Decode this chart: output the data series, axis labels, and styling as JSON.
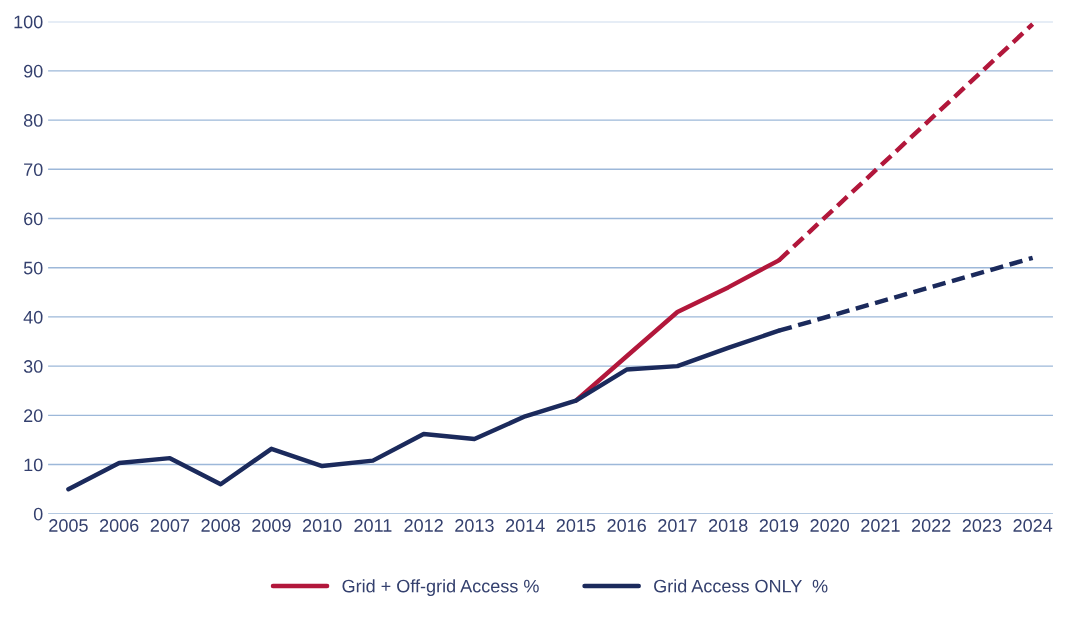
{
  "chart_data": {
    "type": "line",
    "categories": [
      "2005",
      "2006",
      "2007",
      "2008",
      "2009",
      "2010",
      "2011",
      "2012",
      "2013",
      "2014",
      "2015",
      "2016",
      "2017",
      "2018",
      "2019",
      "2020",
      "2021",
      "2022",
      "2023",
      "2024"
    ],
    "series": [
      {
        "name": "Grid + Off-grid Access %",
        "color": "#b2173b",
        "line_style": "solid",
        "values": [
          null,
          null,
          null,
          null,
          null,
          null,
          null,
          null,
          null,
          null,
          23,
          32,
          41,
          46,
          51.5,
          null,
          null,
          null,
          null,
          null
        ]
      },
      {
        "color": "#b2173b",
        "line_style": "dashed",
        "values": [
          null,
          null,
          null,
          null,
          null,
          null,
          null,
          null,
          null,
          null,
          null,
          null,
          null,
          null,
          51.5,
          null,
          null,
          null,
          null,
          99.5
        ]
      },
      {
        "name": "Grid Access ONLY  %",
        "color": "#1b2a5c",
        "line_style": "solid",
        "values": [
          5,
          10.3,
          11.3,
          6,
          13.2,
          9.7,
          10.8,
          16.2,
          15.2,
          19.8,
          23,
          29.3,
          30,
          33.7,
          37.2,
          null,
          null,
          null,
          null,
          null
        ]
      },
      {
        "color": "#1b2a5c",
        "line_style": "dashed",
        "values": [
          null,
          null,
          null,
          null,
          null,
          null,
          null,
          null,
          null,
          null,
          null,
          null,
          null,
          null,
          37.2,
          null,
          null,
          null,
          null,
          52
        ]
      }
    ],
    "ylim": [
      0,
      100
    ],
    "yticks": [
      0,
      10,
      20,
      30,
      40,
      50,
      60,
      70,
      80,
      90,
      100
    ],
    "grid": "y",
    "legend": "bottom",
    "marker": "none"
  }
}
